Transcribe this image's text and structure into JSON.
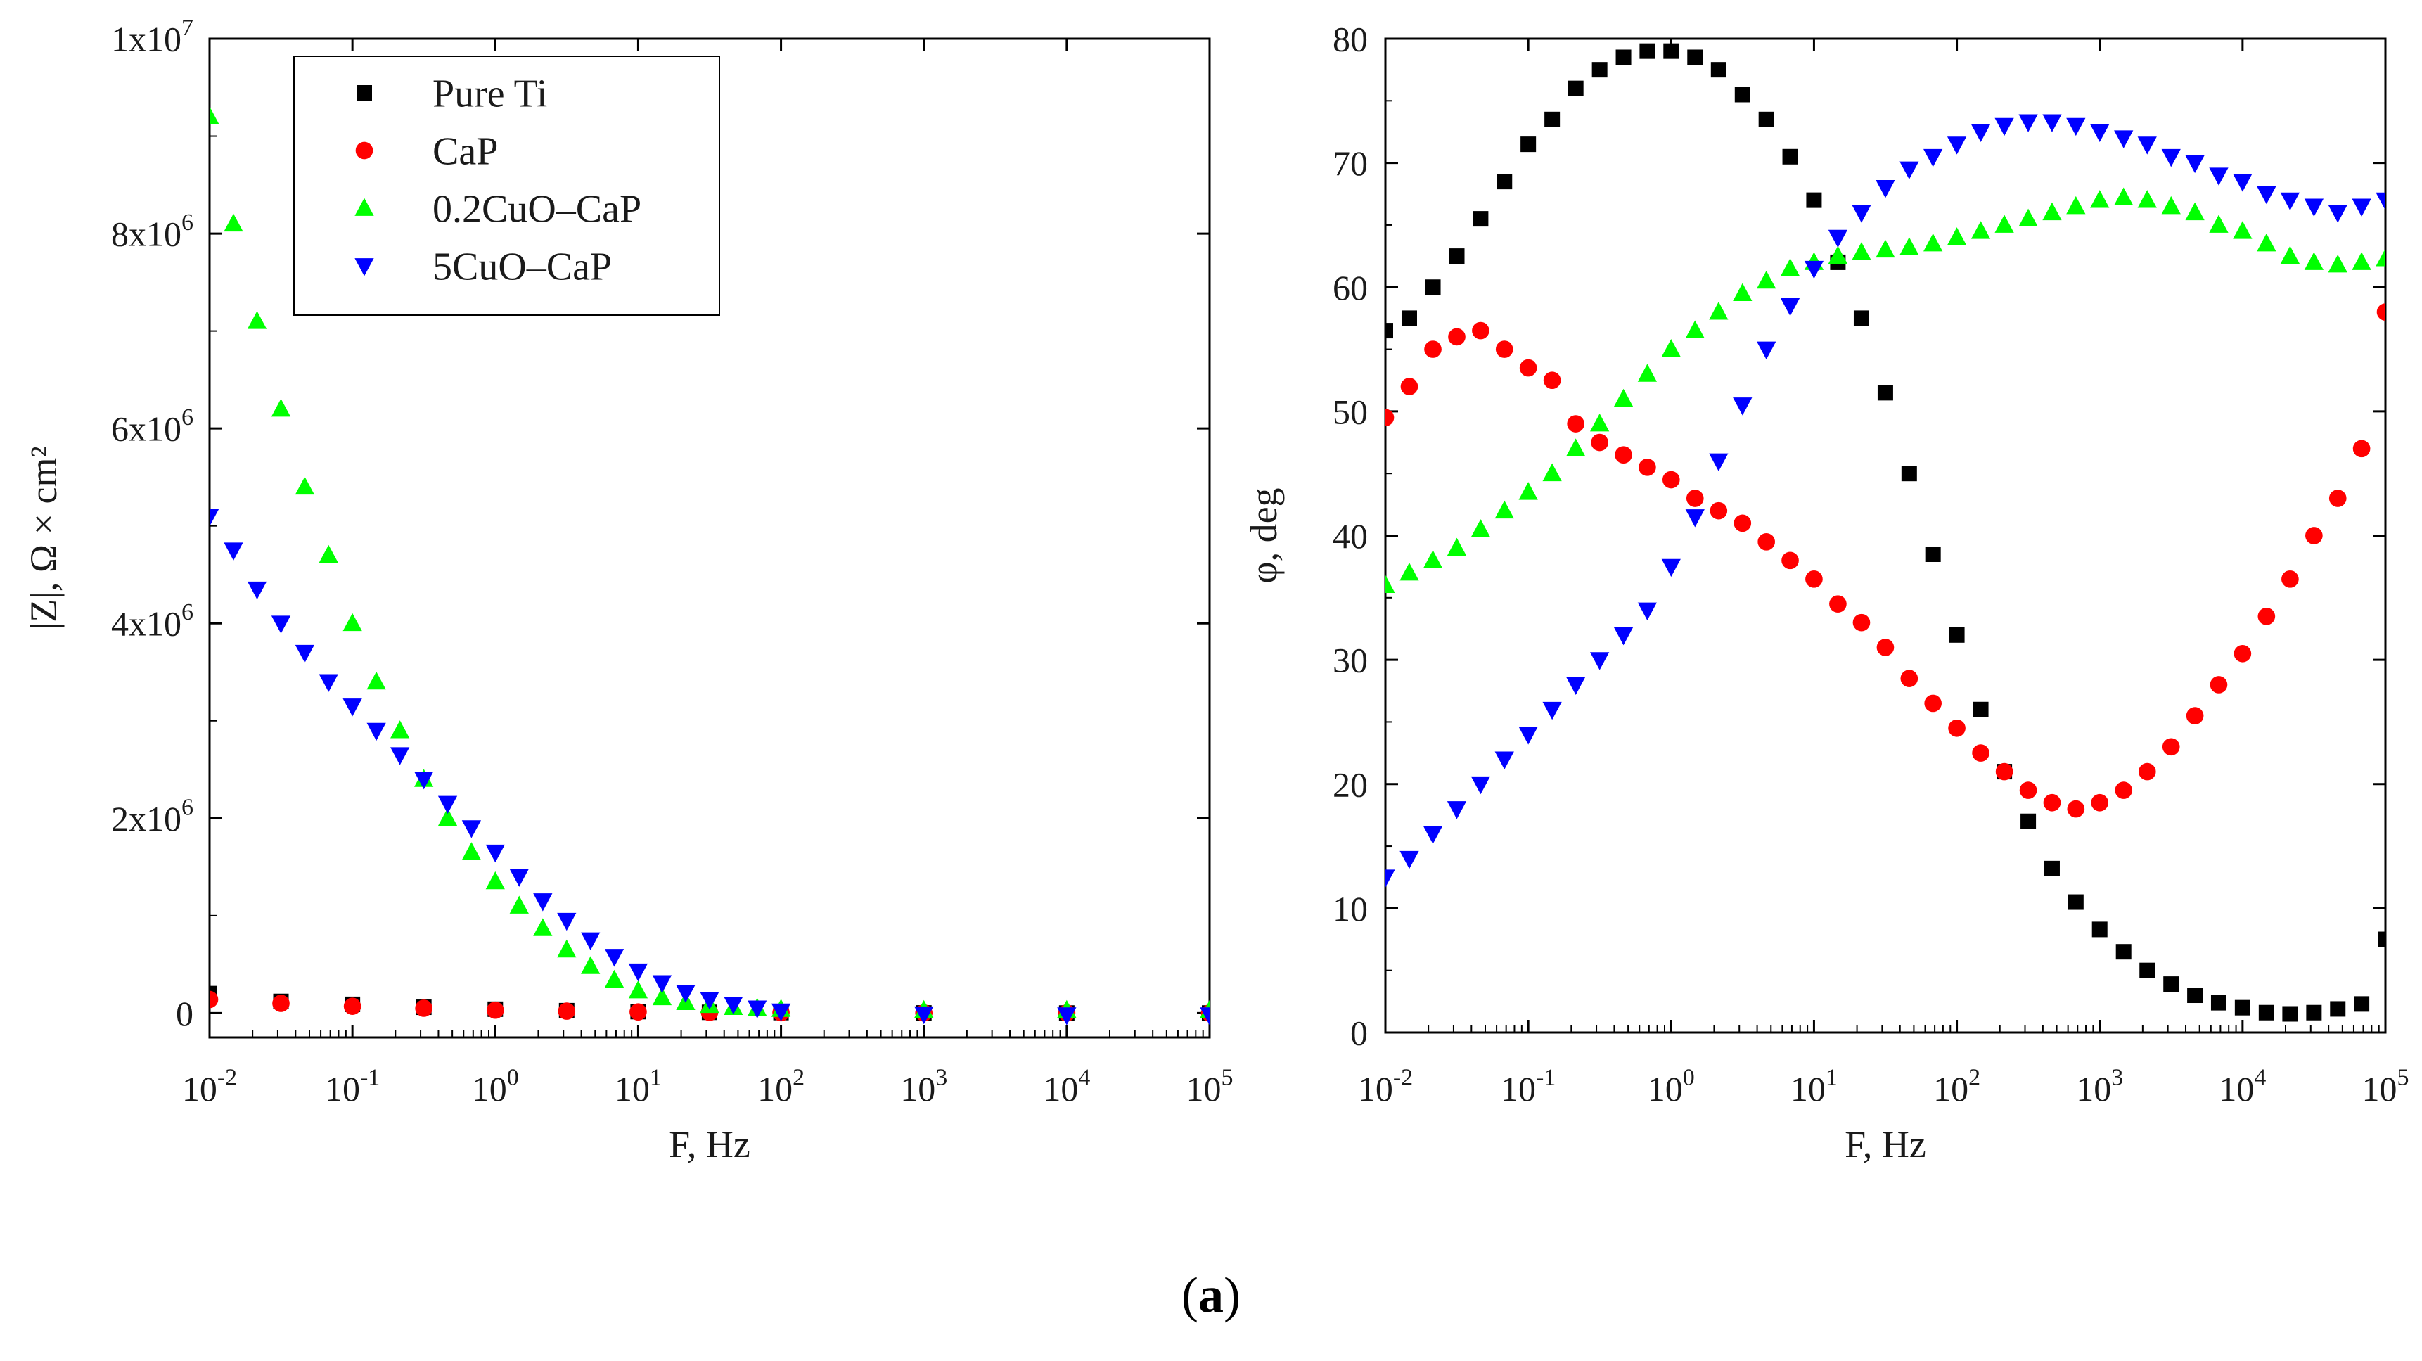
{
  "chart_data": [
    {
      "type": "scatter",
      "panel": "left",
      "xlabel": "F, Hz",
      "ylabel": "|Z|, Ω × cm²",
      "x_scale": "log",
      "xlim": [
        0.01,
        100000
      ],
      "ylim": [
        -250000,
        10000000
      ],
      "x_ticks": [
        {
          "value": 0.01,
          "base": "10",
          "exp": "-2"
        },
        {
          "value": 0.1,
          "base": "10",
          "exp": "-1"
        },
        {
          "value": 1,
          "base": "10",
          "exp": "0"
        },
        {
          "value": 10,
          "base": "10",
          "exp": "1"
        },
        {
          "value": 100,
          "base": "10",
          "exp": "2"
        },
        {
          "value": 1000,
          "base": "10",
          "exp": "3"
        },
        {
          "value": 10000,
          "base": "10",
          "exp": "4"
        },
        {
          "value": 100000,
          "base": "10",
          "exp": "5"
        }
      ],
      "y_ticks": [
        {
          "value": 0,
          "base": "0",
          "exp": ""
        },
        {
          "value": 2000000,
          "base": "2x10",
          "exp": "6"
        },
        {
          "value": 4000000,
          "base": "4x10",
          "exp": "6"
        },
        {
          "value": 6000000,
          "base": "6x10",
          "exp": "6"
        },
        {
          "value": 8000000,
          "base": "8x10",
          "exp": "6"
        },
        {
          "value": 10000000,
          "base": "1x10",
          "exp": "7"
        }
      ],
      "legend": [
        {
          "name": "Pure Ti",
          "color": "#000000",
          "marker": "square"
        },
        {
          "name": "CaP",
          "color": "#ff0000",
          "marker": "circle"
        },
        {
          "name": "0.2CuO–CaP",
          "color": "#00ff00",
          "marker": "triangle-up"
        },
        {
          "name": "5CuO–CaP",
          "color": "#0000ff",
          "marker": "triangle-down"
        }
      ],
      "legend_position": "top-center",
      "series": [
        {
          "name": "Pure Ti",
          "color": "#000000",
          "marker": "square",
          "x": [
            0.01,
            0.0316,
            0.1,
            0.316,
            1,
            3.16,
            10,
            31.6,
            100,
            1000,
            10000,
            100000
          ],
          "y": [
            200000,
            120000,
            90000,
            60000,
            40000,
            25000,
            15000,
            8000,
            5000,
            2000,
            1000,
            1000
          ]
        },
        {
          "name": "CaP",
          "color": "#ff0000",
          "marker": "circle",
          "x": [
            0.01,
            0.0316,
            0.1,
            0.316,
            1,
            3.16,
            10,
            31.6,
            100,
            1000,
            10000,
            100000
          ],
          "y": [
            140000,
            100000,
            70000,
            50000,
            30000,
            20000,
            12000,
            7000,
            4000,
            2000,
            1000,
            1000
          ]
        },
        {
          "name": "0.2CuO–CaP",
          "color": "#00ff00",
          "marker": "triangle-up",
          "x": [
            0.01,
            0.0147,
            0.0215,
            0.0316,
            0.0464,
            0.0681,
            0.1,
            0.147,
            0.215,
            0.316,
            0.464,
            0.681,
            1,
            1.47,
            2.15,
            3.16,
            4.64,
            6.81,
            10,
            14.7,
            21.5,
            31.6,
            46.4,
            68.1,
            100,
            1000,
            10000,
            100000
          ],
          "y": [
            9200000,
            8100000,
            7100000,
            6200000,
            5400000,
            4700000,
            4000000,
            3400000,
            2900000,
            2400000,
            2000000,
            1650000,
            1350000,
            1100000,
            870000,
            650000,
            480000,
            340000,
            230000,
            160000,
            110000,
            80000,
            60000,
            50000,
            40000,
            30000,
            30000,
            30000
          ]
        },
        {
          "name": "5CuO–CaP",
          "color": "#0000ff",
          "marker": "triangle-down",
          "x": [
            0.01,
            0.0147,
            0.0215,
            0.0316,
            0.0464,
            0.0681,
            0.1,
            0.147,
            0.215,
            0.316,
            0.464,
            0.681,
            1,
            1.47,
            2.15,
            3.16,
            4.64,
            6.81,
            10,
            14.7,
            21.5,
            31.6,
            46.4,
            68.1,
            100,
            1000,
            10000,
            100000
          ],
          "y": [
            5100000,
            4750000,
            4350000,
            4000000,
            3700000,
            3400000,
            3150000,
            2900000,
            2650000,
            2400000,
            2150000,
            1900000,
            1650000,
            1400000,
            1150000,
            950000,
            750000,
            580000,
            430000,
            310000,
            210000,
            140000,
            90000,
            50000,
            20000,
            -10000,
            -20000,
            -20000
          ]
        }
      ]
    },
    {
      "type": "scatter",
      "panel": "right",
      "xlabel": "F, Hz",
      "ylabel": "φ, deg",
      "x_scale": "log",
      "xlim": [
        0.01,
        100000
      ],
      "ylim": [
        0,
        80
      ],
      "x_ticks": [
        {
          "value": 0.01,
          "base": "10",
          "exp": "-2"
        },
        {
          "value": 0.1,
          "base": "10",
          "exp": "-1"
        },
        {
          "value": 1,
          "base": "10",
          "exp": "0"
        },
        {
          "value": 10,
          "base": "10",
          "exp": "1"
        },
        {
          "value": 100,
          "base": "10",
          "exp": "2"
        },
        {
          "value": 1000,
          "base": "10",
          "exp": "3"
        },
        {
          "value": 10000,
          "base": "10",
          "exp": "4"
        },
        {
          "value": 100000,
          "base": "10",
          "exp": "5"
        }
      ],
      "y_ticks": [
        {
          "value": 0,
          "base": "0",
          "exp": ""
        },
        {
          "value": 10,
          "base": "10",
          "exp": ""
        },
        {
          "value": 20,
          "base": "20",
          "exp": ""
        },
        {
          "value": 30,
          "base": "30",
          "exp": ""
        },
        {
          "value": 40,
          "base": "40",
          "exp": ""
        },
        {
          "value": 50,
          "base": "50",
          "exp": ""
        },
        {
          "value": 60,
          "base": "60",
          "exp": ""
        },
        {
          "value": 70,
          "base": "70",
          "exp": ""
        },
        {
          "value": 80,
          "base": "80",
          "exp": ""
        }
      ],
      "series": [
        {
          "name": "Pure Ti",
          "color": "#000000",
          "marker": "square",
          "x": [
            0.01,
            0.0147,
            0.0215,
            0.0316,
            0.0464,
            0.0681,
            0.1,
            0.147,
            0.215,
            0.316,
            0.464,
            0.681,
            1,
            1.47,
            2.15,
            3.16,
            4.64,
            6.81,
            10,
            14.7,
            21.5,
            31.6,
            46.4,
            68.1,
            100,
            147,
            215,
            316,
            464,
            681,
            1000,
            1470,
            2150,
            3160,
            4640,
            6810,
            10000,
            14700,
            21500,
            31600,
            46400,
            68100,
            100000
          ],
          "y": [
            56.5,
            57.5,
            60,
            62.5,
            65.5,
            68.5,
            71.5,
            73.5,
            76,
            77.5,
            78.5,
            79,
            79,
            78.5,
            77.5,
            75.5,
            73.5,
            70.5,
            67,
            62,
            57.5,
            51.5,
            45,
            38.5,
            32,
            26,
            21,
            17,
            13.2,
            10.5,
            8.3,
            6.5,
            5,
            3.9,
            3,
            2.4,
            2,
            1.6,
            1.5,
            1.6,
            1.9,
            2.3,
            7.5
          ]
        },
        {
          "name": "CaP",
          "color": "#ff0000",
          "marker": "circle",
          "x": [
            0.01,
            0.0147,
            0.0215,
            0.0316,
            0.0464,
            0.0681,
            0.1,
            0.147,
            0.215,
            0.316,
            0.464,
            0.681,
            1,
            1.47,
            2.15,
            3.16,
            4.64,
            6.81,
            10,
            14.7,
            21.5,
            31.6,
            46.4,
            68.1,
            100,
            147,
            215,
            316,
            464,
            681,
            1000,
            1470,
            2150,
            3160,
            4640,
            6810,
            10000,
            14700,
            21500,
            31600,
            46400,
            68100,
            100000
          ],
          "y": [
            49.5,
            52,
            55,
            56,
            56.5,
            55,
            53.5,
            52.5,
            49,
            47.5,
            46.5,
            45.5,
            44.5,
            43,
            42,
            41,
            39.5,
            38,
            36.5,
            34.5,
            33,
            31,
            28.5,
            26.5,
            24.5,
            22.5,
            21,
            19.5,
            18.5,
            18,
            18.5,
            19.5,
            21,
            23,
            25.5,
            28,
            30.5,
            33.5,
            36.5,
            40,
            43,
            47,
            58
          ]
        },
        {
          "name": "0.2CuO–CaP",
          "color": "#00ff00",
          "marker": "triangle-up",
          "x": [
            0.01,
            0.0147,
            0.0215,
            0.0316,
            0.0464,
            0.0681,
            0.1,
            0.147,
            0.215,
            0.316,
            0.464,
            0.681,
            1,
            1.47,
            2.15,
            3.16,
            4.64,
            6.81,
            10,
            14.7,
            21.5,
            31.6,
            46.4,
            68.1,
            100,
            147,
            215,
            316,
            464,
            681,
            1000,
            1470,
            2150,
            3160,
            4640,
            6810,
            10000,
            14700,
            21500,
            31600,
            46400,
            68100,
            100000
          ],
          "y": [
            36,
            37,
            38,
            39,
            40.5,
            42,
            43.5,
            45,
            47,
            49,
            51,
            53,
            55,
            56.5,
            58,
            59.5,
            60.5,
            61.5,
            62,
            62.5,
            62.8,
            63,
            63.2,
            63.5,
            64,
            64.5,
            65,
            65.5,
            66,
            66.5,
            67,
            67.2,
            67,
            66.5,
            66,
            65,
            64.5,
            63.5,
            62.5,
            62,
            61.8,
            62,
            62.3
          ]
        },
        {
          "name": "5CuO–CaP",
          "color": "#0000ff",
          "marker": "triangle-down",
          "x": [
            0.01,
            0.0147,
            0.0215,
            0.0316,
            0.0464,
            0.0681,
            0.1,
            0.147,
            0.215,
            0.316,
            0.464,
            0.681,
            1,
            1.47,
            2.15,
            3.16,
            4.64,
            6.81,
            10,
            14.7,
            21.5,
            31.6,
            46.4,
            68.1,
            100,
            147,
            215,
            316,
            464,
            681,
            1000,
            1470,
            2150,
            3160,
            4640,
            6810,
            10000,
            14700,
            21500,
            31600,
            46400,
            68100,
            100000
          ],
          "y": [
            12.5,
            14,
            16,
            18,
            20,
            22,
            24,
            26,
            28,
            30,
            32,
            34,
            37.5,
            41.5,
            46,
            50.5,
            55,
            58.5,
            61.5,
            64,
            66,
            68,
            69.5,
            70.5,
            71.5,
            72.5,
            73,
            73.3,
            73.3,
            73,
            72.5,
            72,
            71.5,
            70.5,
            70,
            69,
            68.5,
            67.5,
            67,
            66.5,
            66,
            66.5,
            67
          ]
        }
      ]
    }
  ],
  "caption": {
    "open": "(",
    "label": "a",
    "close": ")"
  }
}
